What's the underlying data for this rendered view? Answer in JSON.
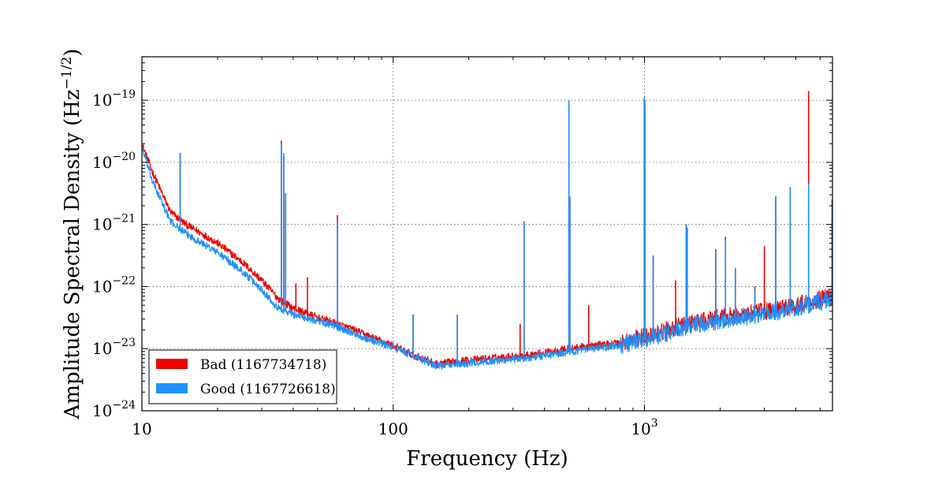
{
  "chart_data": {
    "type": "line",
    "xlabel": "Frequency (Hz)",
    "ylabel_main": "Amplitude Spectral Density (Hz",
    "ylabel_exponent": "−1/2",
    "ylabel_close": ")",
    "x_scale": "log",
    "y_scale": "log",
    "xlim": [
      10,
      5600
    ],
    "ylim_log10": [
      -24,
      -18.3
    ],
    "grid": true,
    "legend_placement": "lower-left",
    "x_ticks": [
      {
        "value": 10,
        "label": "10"
      },
      {
        "value": 100,
        "label": "100"
      },
      {
        "value": 1000,
        "base": "10",
        "exp": "3"
      }
    ],
    "y_ticks": [
      {
        "exp_value": -24,
        "base": "10",
        "exp": "−24"
      },
      {
        "exp_value": -23,
        "base": "10",
        "exp": "−23"
      },
      {
        "exp_value": -22,
        "base": "10",
        "exp": "−22"
      },
      {
        "exp_value": -21,
        "base": "10",
        "exp": "−21"
      },
      {
        "exp_value": -20,
        "base": "10",
        "exp": "−20"
      },
      {
        "exp_value": -19,
        "base": "10",
        "exp": "−19"
      }
    ],
    "series": [
      {
        "name": "Bad (1167734718)",
        "color": "#ee0000",
        "baseline_log10": [
          [
            10,
            -19.7
          ],
          [
            11,
            -20.15
          ],
          [
            13,
            -20.8
          ],
          [
            15,
            -21.0
          ],
          [
            20,
            -21.3
          ],
          [
            25,
            -21.6
          ],
          [
            30,
            -21.9
          ],
          [
            35,
            -22.2
          ],
          [
            40,
            -22.35
          ],
          [
            50,
            -22.5
          ],
          [
            60,
            -22.6
          ],
          [
            70,
            -22.7
          ],
          [
            80,
            -22.8
          ],
          [
            100,
            -22.95
          ],
          [
            120,
            -23.1
          ],
          [
            150,
            -23.25
          ],
          [
            180,
            -23.2
          ],
          [
            250,
            -23.15
          ],
          [
            350,
            -23.1
          ],
          [
            500,
            -23.0
          ],
          [
            800,
            -22.9
          ],
          [
            1000,
            -22.8
          ],
          [
            1500,
            -22.6
          ],
          [
            2000,
            -22.5
          ],
          [
            3000,
            -22.4
          ],
          [
            4000,
            -22.3
          ],
          [
            5000,
            -22.2
          ],
          [
            5600,
            -22.15
          ]
        ],
        "peaks": [
          {
            "f": 14.2,
            "log10": -19.85
          },
          {
            "f": 35.9,
            "log10": -19.65
          },
          {
            "f": 36.7,
            "log10": -19.9
          },
          {
            "f": 37.3,
            "log10": -20.5
          },
          {
            "f": 41.0,
            "log10": -21.95
          },
          {
            "f": 45.6,
            "log10": -21.85
          },
          {
            "f": 60.0,
            "log10": -20.85
          },
          {
            "f": 120.0,
            "log10": -22.45
          },
          {
            "f": 180.0,
            "log10": -22.45
          },
          {
            "f": 320.0,
            "log10": -22.6
          },
          {
            "f": 331.9,
            "log10": -20.95
          },
          {
            "f": 500.5,
            "log10": -19.05
          },
          {
            "f": 505.0,
            "log10": -20.55
          },
          {
            "f": 600.0,
            "log10": -22.3
          },
          {
            "f": 998.0,
            "log10": -18.97
          },
          {
            "f": 1004.0,
            "log10": -19.1
          },
          {
            "f": 1083.0,
            "log10": -21.5
          },
          {
            "f": 1330.0,
            "log10": -21.9
          },
          {
            "f": 1465.0,
            "log10": -21.0
          },
          {
            "f": 1480.0,
            "log10": -21.05
          },
          {
            "f": 1922.0,
            "log10": -21.4
          },
          {
            "f": 2100.0,
            "log10": -21.2
          },
          {
            "f": 2300.0,
            "log10": -21.7
          },
          {
            "f": 2750.0,
            "log10": -22.0
          },
          {
            "f": 3000.0,
            "log10": -21.35
          },
          {
            "f": 3330.0,
            "log10": -20.55
          },
          {
            "f": 3800.0,
            "log10": -20.4
          },
          {
            "f": 4500.0,
            "log10": -18.85
          },
          {
            "f": 5580.0,
            "log10": -20.6
          }
        ]
      },
      {
        "name": "Good (1167726618)",
        "color": "#1e90ff",
        "baseline_log10": [
          [
            10,
            -19.75
          ],
          [
            11,
            -20.3
          ],
          [
            13,
            -20.95
          ],
          [
            15,
            -21.15
          ],
          [
            20,
            -21.45
          ],
          [
            25,
            -21.75
          ],
          [
            30,
            -22.05
          ],
          [
            35,
            -22.35
          ],
          [
            40,
            -22.45
          ],
          [
            50,
            -22.55
          ],
          [
            60,
            -22.65
          ],
          [
            70,
            -22.75
          ],
          [
            80,
            -22.85
          ],
          [
            100,
            -22.98
          ],
          [
            120,
            -23.12
          ],
          [
            150,
            -23.28
          ],
          [
            180,
            -23.25
          ],
          [
            250,
            -23.2
          ],
          [
            350,
            -23.15
          ],
          [
            500,
            -23.05
          ],
          [
            800,
            -22.95
          ],
          [
            1000,
            -22.85
          ],
          [
            1500,
            -22.65
          ],
          [
            2000,
            -22.55
          ],
          [
            3000,
            -22.45
          ],
          [
            4000,
            -22.35
          ],
          [
            5000,
            -22.25
          ],
          [
            5600,
            -22.2
          ]
        ],
        "peaks": [
          {
            "f": 14.2,
            "log10": -19.85
          },
          {
            "f": 35.9,
            "log10": -19.7
          },
          {
            "f": 36.7,
            "log10": -19.85
          },
          {
            "f": 37.3,
            "log10": -20.5
          },
          {
            "f": 60.0,
            "log10": -20.95
          },
          {
            "f": 120.0,
            "log10": -22.45
          },
          {
            "f": 180.0,
            "log10": -22.45
          },
          {
            "f": 331.9,
            "log10": -20.95
          },
          {
            "f": 500.5,
            "log10": -19.0
          },
          {
            "f": 505.0,
            "log10": -20.55
          },
          {
            "f": 998.0,
            "log10": -18.95
          },
          {
            "f": 1004.0,
            "log10": -19.0
          },
          {
            "f": 1083.0,
            "log10": -21.5
          },
          {
            "f": 1465.0,
            "log10": -21.0
          },
          {
            "f": 1480.0,
            "log10": -21.05
          },
          {
            "f": 1922.0,
            "log10": -21.45
          },
          {
            "f": 2100.0,
            "log10": -21.25
          },
          {
            "f": 2300.0,
            "log10": -21.7
          },
          {
            "f": 2750.0,
            "log10": -22.05
          },
          {
            "f": 3330.0,
            "log10": -20.55
          },
          {
            "f": 3800.0,
            "log10": -20.4
          },
          {
            "f": 4500.0,
            "log10": -20.35
          },
          {
            "f": 5580.0,
            "log10": -20.6
          }
        ]
      }
    ]
  }
}
